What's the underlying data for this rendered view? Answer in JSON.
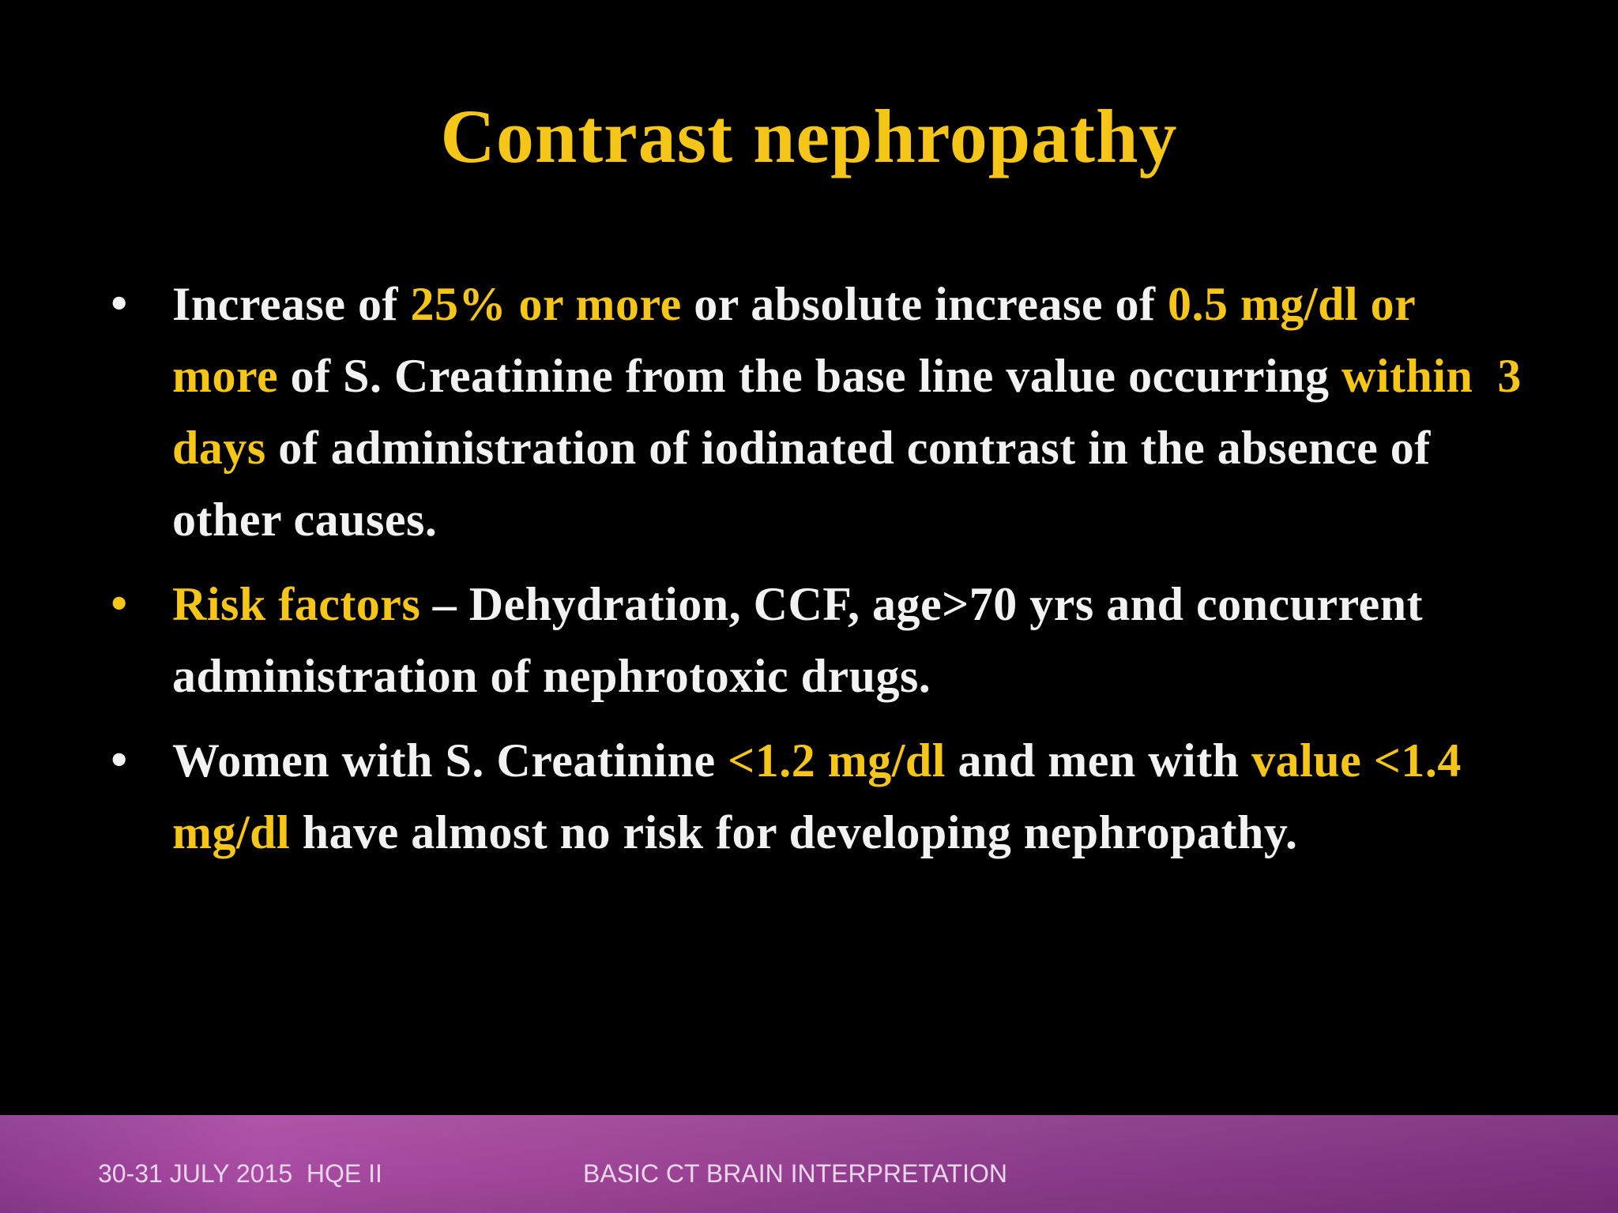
{
  "slide": {
    "title": "Contrast nephropathy",
    "colors": {
      "background": "#000000",
      "text": "#F2F2F2",
      "highlight": "#F5C518",
      "footer_band": "#9B4294"
    },
    "bullets": [
      {
        "marker_color": "white",
        "parts": [
          {
            "text": "Increase of ",
            "highlight": false
          },
          {
            "text": "25% or more",
            "highlight": true
          },
          {
            "text": " or absolute increase of ",
            "highlight": false
          },
          {
            "text": "0.5 mg/dl or more",
            "highlight": true
          },
          {
            "text": " of S. Creatinine from the base line value occurring ",
            "highlight": false
          },
          {
            "text": "within  3 days",
            "highlight": true
          },
          {
            "text": " of administration of iodinated contrast in the absence of other causes.",
            "highlight": false
          }
        ]
      },
      {
        "marker_color": "yellow",
        "parts": [
          {
            "text": "Risk factors",
            "highlight": true
          },
          {
            "text": " – Dehydration, CCF, age>70 yrs and concurrent administration of nephrotoxic drugs.",
            "highlight": false
          }
        ]
      },
      {
        "marker_color": "white",
        "parts": [
          {
            "text": "Women with S. Creatinine ",
            "highlight": false
          },
          {
            "text": "<1.2 mg/dl",
            "highlight": true
          },
          {
            "text": " and men with ",
            "highlight": false
          },
          {
            "text": "value <1.4 mg/dl",
            "highlight": true
          },
          {
            "text": " have almost no risk for developing nephropathy.",
            "highlight": false
          }
        ]
      }
    ]
  },
  "footer": {
    "left": "30-31 JULY 2015  HQE II",
    "center": "BASIC CT BRAIN INTERPRETATION"
  }
}
